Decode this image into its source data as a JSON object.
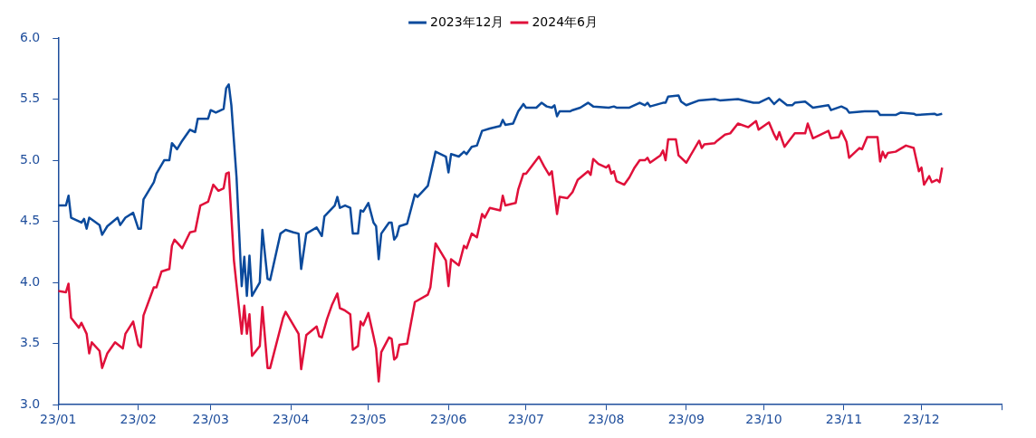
{
  "chart_data": {
    "type": "line",
    "xlim": [
      "2023-01-01",
      "2024-01-01"
    ],
    "xticks": [
      {
        "value": "2023-01-01",
        "label": "23/01"
      },
      {
        "value": "2023-02-01",
        "label": "23/02"
      },
      {
        "value": "2023-03-01",
        "label": "23/03"
      },
      {
        "value": "2023-04-01",
        "label": "23/04"
      },
      {
        "value": "2023-05-01",
        "label": "23/05"
      },
      {
        "value": "2023-06-01",
        "label": "23/06"
      },
      {
        "value": "2023-07-01",
        "label": "23/07"
      },
      {
        "value": "2023-08-01",
        "label": "23/08"
      },
      {
        "value": "2023-09-01",
        "label": "23/09"
      },
      {
        "value": "2023-10-01",
        "label": "23/10"
      },
      {
        "value": "2023-11-01",
        "label": "23/11"
      },
      {
        "value": "2023-12-01",
        "label": "23/12"
      },
      {
        "value": "2024-01-01",
        "label": null
      }
    ],
    "ylim": [
      3.0,
      6.0
    ],
    "yticks": [
      {
        "value": 3,
        "label": "3.0"
      },
      3.5,
      {
        "value": 4,
        "label": "4.0"
      },
      4.5,
      {
        "value": 5,
        "label": "5.0"
      },
      5.5,
      {
        "value": 6,
        "label": "6.0"
      }
    ],
    "grid": false,
    "legend": "top",
    "marker": "none",
    "line_style": "solid",
    "series": [
      {
        "name": "2023年12月",
        "color": "#0b4a9c",
        "x": [
          "2023-01-01",
          "2023-01-04",
          "2023-01-05",
          "2023-01-06",
          "2023-01-10",
          "2023-01-11",
          "2023-01-12",
          "2023-01-13",
          "2023-01-17",
          "2023-01-18",
          "2023-01-20",
          "2023-01-24",
          "2023-01-25",
          "2023-01-27",
          "2023-01-30",
          "2023-02-01",
          "2023-02-02",
          "2023-02-03",
          "2023-02-07",
          "2023-02-08",
          "2023-02-11",
          "2023-02-13",
          "2023-02-14",
          "2023-02-16",
          "2023-02-18",
          "2023-02-21",
          "2023-02-23",
          "2023-02-24",
          "2023-02-28",
          "2023-03-01",
          "2023-03-03",
          "2023-03-06",
          "2023-03-07",
          "2023-03-08",
          "2023-03-09",
          "2023-03-11",
          "2023-03-13",
          "2023-03-14",
          "2023-03-15",
          "2023-03-16",
          "2023-03-17",
          "2023-03-20",
          "2023-03-21",
          "2023-03-23",
          "2023-03-24",
          "2023-03-28",
          "2023-03-30",
          "2023-04-02",
          "2023-04-04",
          "2023-04-05",
          "2023-04-07",
          "2023-04-11",
          "2023-04-13",
          "2023-04-14",
          "2023-04-18",
          "2023-04-19",
          "2023-04-20",
          "2023-04-22",
          "2023-04-24",
          "2023-04-25",
          "2023-04-27",
          "2023-04-28",
          "2023-04-29",
          "2023-05-01",
          "2023-05-03",
          "2023-05-04",
          "2023-05-05",
          "2023-05-06",
          "2023-05-09",
          "2023-05-10",
          "2023-05-11",
          "2023-05-12",
          "2023-05-13",
          "2023-05-16",
          "2023-05-19",
          "2023-05-20",
          "2023-05-24",
          "2023-05-27",
          "2023-05-31",
          "2023-06-01",
          "2023-06-02",
          "2023-06-05",
          "2023-06-07",
          "2023-06-08",
          "2023-06-10",
          "2023-06-12",
          "2023-06-14",
          "2023-06-17",
          "2023-06-21",
          "2023-06-22",
          "2023-06-23",
          "2023-06-26",
          "2023-06-28",
          "2023-06-30",
          "2023-07-01",
          "2023-07-05",
          "2023-07-07",
          "2023-07-09",
          "2023-07-11",
          "2023-07-12",
          "2023-07-13",
          "2023-07-14",
          "2023-07-18",
          "2023-07-19",
          "2023-07-22",
          "2023-07-25",
          "2023-07-27",
          "2023-08-02",
          "2023-08-04",
          "2023-08-05",
          "2023-08-10",
          "2023-08-14",
          "2023-08-16",
          "2023-08-17",
          "2023-08-18",
          "2023-08-23",
          "2023-08-24",
          "2023-08-25",
          "2023-08-29",
          "2023-08-30",
          "2023-09-01",
          "2023-09-06",
          "2023-09-12",
          "2023-09-14",
          "2023-09-21",
          "2023-09-27",
          "2023-09-29",
          "2023-10-03",
          "2023-10-05",
          "2023-10-07",
          "2023-10-10",
          "2023-10-12",
          "2023-10-13",
          "2023-10-17",
          "2023-10-20",
          "2023-10-26",
          "2023-10-27",
          "2023-10-31",
          "2023-11-02",
          "2023-11-03",
          "2023-11-09",
          "2023-11-10",
          "2023-11-14",
          "2023-11-15",
          "2023-11-21",
          "2023-11-23",
          "2023-11-28",
          "2023-11-29",
          "2023-12-06",
          "2023-12-07",
          "2023-12-09"
        ],
        "values": [
          4.63,
          4.63,
          4.71,
          4.53,
          4.49,
          4.52,
          4.44,
          4.53,
          4.47,
          4.39,
          4.46,
          4.53,
          4.47,
          4.53,
          4.57,
          4.44,
          4.44,
          4.68,
          4.82,
          4.89,
          5.0,
          5.0,
          5.14,
          5.09,
          5.16,
          5.25,
          5.23,
          5.34,
          5.34,
          5.41,
          5.39,
          5.42,
          5.59,
          5.62,
          5.45,
          4.86,
          3.97,
          4.21,
          3.89,
          4.22,
          3.89,
          4.0,
          4.43,
          4.03,
          4.02,
          4.4,
          4.43,
          4.41,
          4.4,
          4.11,
          4.4,
          4.45,
          4.38,
          4.54,
          4.63,
          4.7,
          4.61,
          4.63,
          4.61,
          4.4,
          4.4,
          4.59,
          4.58,
          4.65,
          4.49,
          4.46,
          4.19,
          4.4,
          4.49,
          4.49,
          4.35,
          4.38,
          4.46,
          4.48,
          4.72,
          4.7,
          4.79,
          5.07,
          5.03,
          4.9,
          5.05,
          5.03,
          5.07,
          5.05,
          5.11,
          5.12,
          5.24,
          5.26,
          5.28,
          5.33,
          5.29,
          5.3,
          5.4,
          5.46,
          5.43,
          5.43,
          5.47,
          5.44,
          5.43,
          5.45,
          5.36,
          5.4,
          5.4,
          5.41,
          5.43,
          5.47,
          5.44,
          5.43,
          5.44,
          5.43,
          5.43,
          5.47,
          5.45,
          5.47,
          5.44,
          5.47,
          5.47,
          5.52,
          5.53,
          5.48,
          5.45,
          5.49,
          5.5,
          5.49,
          5.5,
          5.47,
          5.47,
          5.51,
          5.46,
          5.5,
          5.45,
          5.45,
          5.47,
          5.48,
          5.43,
          5.45,
          5.41,
          5.44,
          5.42,
          5.39,
          5.4,
          5.4,
          5.4,
          5.37,
          5.37,
          5.39,
          5.38,
          5.37,
          5.38,
          5.37,
          5.38
        ]
      },
      {
        "name": "2024年6月",
        "color": "#e0103a",
        "x": [
          "2023-01-01",
          "2023-01-04",
          "2023-01-05",
          "2023-01-06",
          "2023-01-09",
          "2023-01-10",
          "2023-01-12",
          "2023-01-13",
          "2023-01-14",
          "2023-01-17",
          "2023-01-18",
          "2023-01-20",
          "2023-01-23",
          "2023-01-26",
          "2023-01-27",
          "2023-01-30",
          "2023-02-01",
          "2023-02-02",
          "2023-02-03",
          "2023-02-07",
          "2023-02-08",
          "2023-02-10",
          "2023-02-13",
          "2023-02-14",
          "2023-02-15",
          "2023-02-18",
          "2023-02-21",
          "2023-02-23",
          "2023-02-25",
          "2023-02-28",
          "2023-03-02",
          "2023-03-04",
          "2023-03-06",
          "2023-03-07",
          "2023-03-08",
          "2023-03-10",
          "2023-03-13",
          "2023-03-14",
          "2023-03-15",
          "2023-03-16",
          "2023-03-17",
          "2023-03-20",
          "2023-03-21",
          "2023-03-23",
          "2023-03-24",
          "2023-03-29",
          "2023-03-30",
          "2023-04-04",
          "2023-04-05",
          "2023-04-07",
          "2023-04-11",
          "2023-04-12",
          "2023-04-13",
          "2023-04-15",
          "2023-04-17",
          "2023-04-19",
          "2023-04-20",
          "2023-04-22",
          "2023-04-24",
          "2023-04-25",
          "2023-04-27",
          "2023-04-28",
          "2023-04-29",
          "2023-05-01",
          "2023-05-03",
          "2023-05-04",
          "2023-05-05",
          "2023-05-06",
          "2023-05-09",
          "2023-05-10",
          "2023-05-11",
          "2023-05-12",
          "2023-05-13",
          "2023-05-16",
          "2023-05-19",
          "2023-05-24",
          "2023-05-25",
          "2023-05-27",
          "2023-05-31",
          "2023-06-01",
          "2023-06-02",
          "2023-06-05",
          "2023-06-07",
          "2023-06-08",
          "2023-06-10",
          "2023-06-12",
          "2023-06-14",
          "2023-06-15",
          "2023-06-17",
          "2023-06-21",
          "2023-06-22",
          "2023-06-23",
          "2023-06-27",
          "2023-06-28",
          "2023-06-30",
          "2023-07-01",
          "2023-07-06",
          "2023-07-08",
          "2023-07-10",
          "2023-07-11",
          "2023-07-13",
          "2023-07-14",
          "2023-07-17",
          "2023-07-19",
          "2023-07-21",
          "2023-07-25",
          "2023-07-26",
          "2023-07-27",
          "2023-07-29",
          "2023-08-01",
          "2023-08-02",
          "2023-08-03",
          "2023-08-04",
          "2023-08-05",
          "2023-08-08",
          "2023-08-10",
          "2023-08-12",
          "2023-08-14",
          "2023-08-16",
          "2023-08-17",
          "2023-08-18",
          "2023-08-22",
          "2023-08-23",
          "2023-08-24",
          "2023-08-25",
          "2023-08-28",
          "2023-08-29",
          "2023-09-01",
          "2023-09-06",
          "2023-09-07",
          "2023-09-08",
          "2023-09-12",
          "2023-09-13",
          "2023-09-16",
          "2023-09-18",
          "2023-09-21",
          "2023-09-25",
          "2023-09-28",
          "2023-09-29",
          "2023-10-03",
          "2023-10-05",
          "2023-10-06",
          "2023-10-07",
          "2023-10-09",
          "2023-10-13",
          "2023-10-17",
          "2023-10-18",
          "2023-10-20",
          "2023-10-26",
          "2023-10-27",
          "2023-10-30",
          "2023-10-31",
          "2023-11-02",
          "2023-11-03",
          "2023-11-07",
          "2023-11-08",
          "2023-11-10",
          "2023-11-12",
          "2023-11-14",
          "2023-11-15",
          "2023-11-16",
          "2023-11-17",
          "2023-11-18",
          "2023-11-21",
          "2023-11-25",
          "2023-11-28",
          "2023-11-30",
          "2023-12-01",
          "2023-12-02",
          "2023-12-04",
          "2023-12-05",
          "2023-12-07",
          "2023-12-08",
          "2023-12-09"
        ],
        "values": [
          3.93,
          3.92,
          3.99,
          3.71,
          3.63,
          3.67,
          3.58,
          3.42,
          3.51,
          3.44,
          3.3,
          3.42,
          3.51,
          3.46,
          3.58,
          3.68,
          3.49,
          3.47,
          3.73,
          3.96,
          3.96,
          4.09,
          4.11,
          4.3,
          4.35,
          4.28,
          4.41,
          4.42,
          4.63,
          4.66,
          4.8,
          4.75,
          4.77,
          4.89,
          4.9,
          4.18,
          3.58,
          3.81,
          3.58,
          3.74,
          3.4,
          3.48,
          3.8,
          3.3,
          3.3,
          3.71,
          3.76,
          3.58,
          3.29,
          3.57,
          3.64,
          3.56,
          3.55,
          3.7,
          3.82,
          3.91,
          3.79,
          3.77,
          3.74,
          3.45,
          3.48,
          3.68,
          3.65,
          3.75,
          3.56,
          3.46,
          3.19,
          3.43,
          3.55,
          3.54,
          3.37,
          3.39,
          3.49,
          3.5,
          3.84,
          3.9,
          3.96,
          4.32,
          4.18,
          3.97,
          4.19,
          4.14,
          4.3,
          4.28,
          4.4,
          4.37,
          4.56,
          4.53,
          4.61,
          4.59,
          4.71,
          4.63,
          4.65,
          4.76,
          4.89,
          4.89,
          5.03,
          4.95,
          4.88,
          4.91,
          4.56,
          4.7,
          4.69,
          4.74,
          4.84,
          4.91,
          4.88,
          5.01,
          4.97,
          4.94,
          4.96,
          4.89,
          4.91,
          4.83,
          4.8,
          4.86,
          4.94,
          5.0,
          5.0,
          5.02,
          4.98,
          5.04,
          5.08,
          5.0,
          5.17,
          5.17,
          5.04,
          4.98,
          5.16,
          5.1,
          5.13,
          5.14,
          5.16,
          5.21,
          5.22,
          5.3,
          5.27,
          5.32,
          5.25,
          5.31,
          5.21,
          5.17,
          5.23,
          5.11,
          5.22,
          5.22,
          5.3,
          5.18,
          5.24,
          5.18,
          5.19,
          5.24,
          5.15,
          5.02,
          5.1,
          5.09,
          5.19,
          5.19,
          5.19,
          4.99,
          5.07,
          5.02,
          5.06,
          5.07,
          5.12,
          5.1,
          4.91,
          4.94,
          4.8,
          4.87,
          4.82,
          4.84,
          4.82,
          4.94
        ]
      }
    ]
  }
}
